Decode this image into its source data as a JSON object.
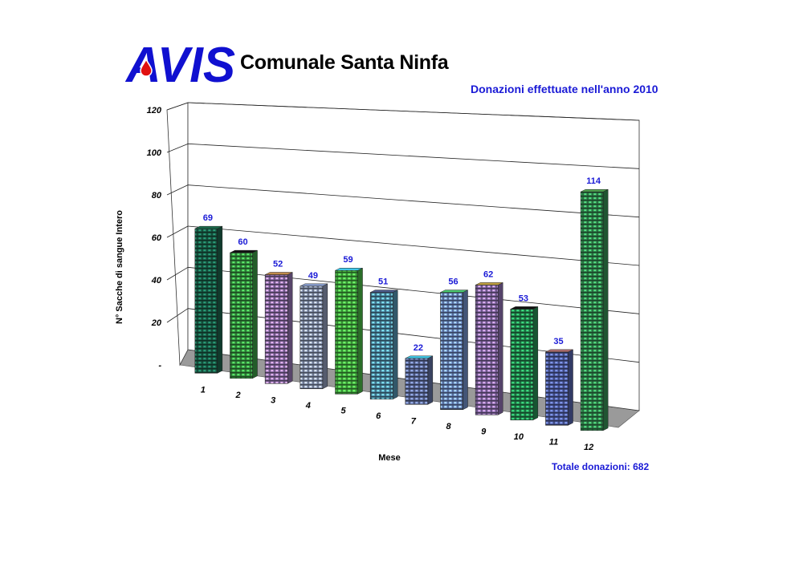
{
  "header": {
    "logo_text": "AVIS",
    "org_name": "Comunale Santa Ninfa",
    "total_text": "Totale donazioni: 682"
  },
  "colors": {
    "logo": "#1010d0",
    "label_blue": "#1a1ad6",
    "floor": "#9a9a9a",
    "bar_bases": [
      "#1d6b52",
      "#3fa84a",
      "#a07ec0",
      "#9aa8c8",
      "#4ec84a",
      "#5aa0c0",
      "#6a7ab0",
      "#7a9ad8",
      "#9a7ac0",
      "#2a9a5a",
      "#5a6ab8",
      "#3a9a5a"
    ],
    "bar_tops": [
      "#1a6a4a",
      "#111111",
      "#c08a4a",
      "#8aa0d0",
      "#40c8e8",
      "#4a5a8a",
      "#40c8e8",
      "#4ac870",
      "#c0a040",
      "#111111",
      "#b07070",
      "#50a050"
    ]
  },
  "chart_data": {
    "type": "bar",
    "title": "Donazioni effettuate nell'anno 2010",
    "xlabel": "Mese",
    "ylabel": "N° Sacche di sangue Intero",
    "categories": [
      "1",
      "2",
      "3",
      "4",
      "5",
      "6",
      "7",
      "8",
      "9",
      "10",
      "11",
      "12"
    ],
    "values": [
      69,
      60,
      52,
      49,
      59,
      51,
      22,
      56,
      62,
      53,
      35,
      114
    ],
    "ylim": [
      0,
      120
    ],
    "yticks": [
      0,
      20,
      40,
      60,
      80,
      100,
      120
    ],
    "ytick_labels": [
      "-",
      "20",
      "40",
      "60",
      "80",
      "100",
      "120"
    ],
    "grid": true,
    "legend": "none"
  }
}
